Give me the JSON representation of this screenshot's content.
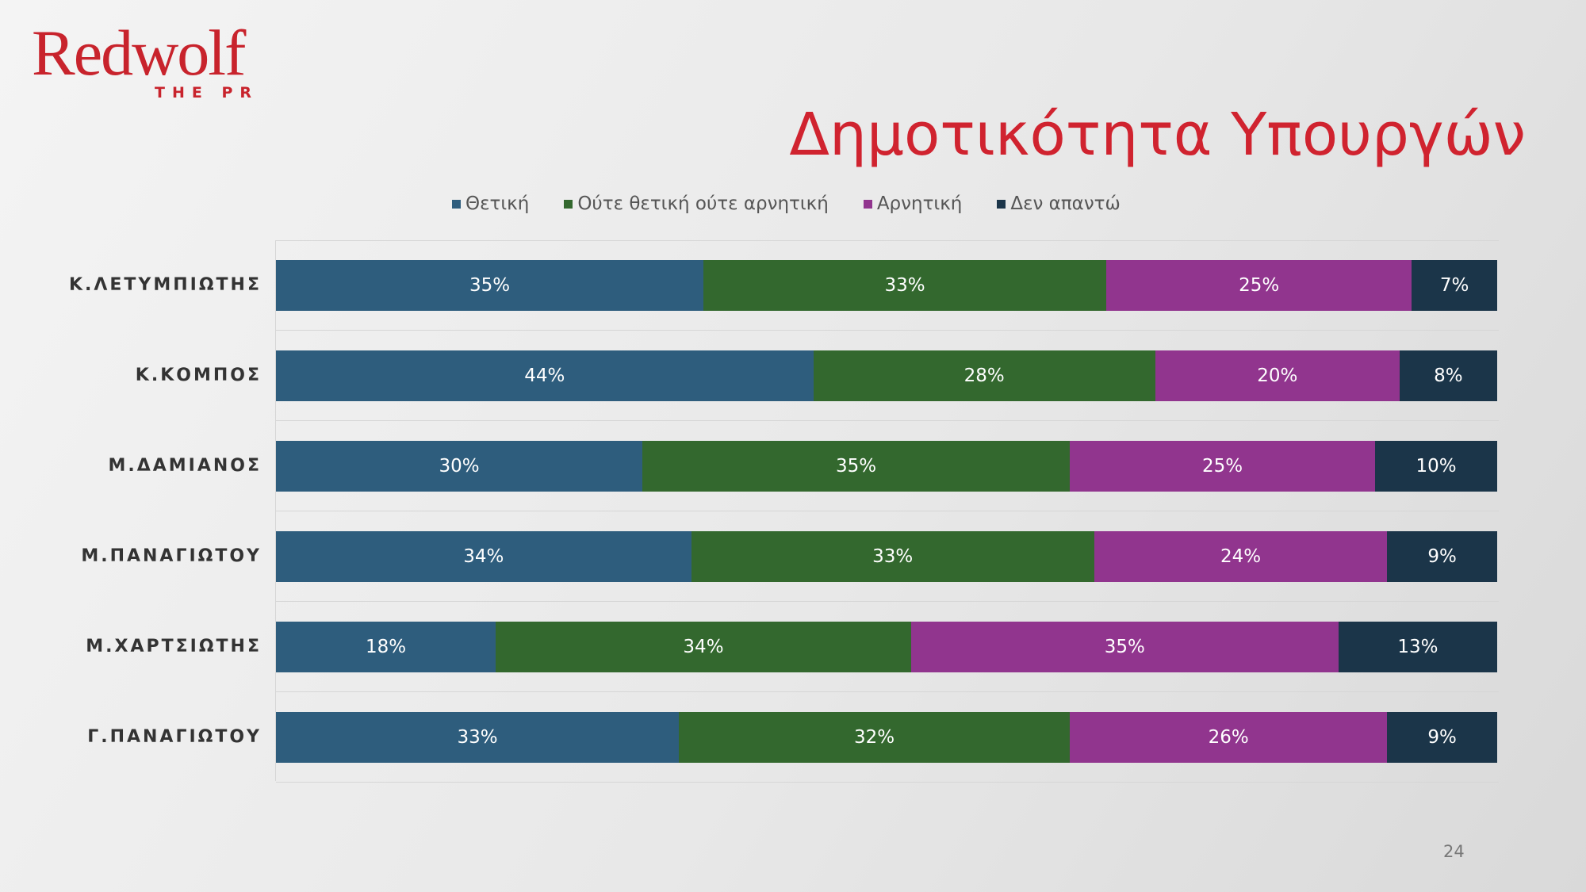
{
  "logo": {
    "wordmark": "Redwolf",
    "tagline": "THE PR"
  },
  "title": "Δημοτικότητα Υπουργών",
  "page_number": "24",
  "colors": {
    "brand_red": "#d0232f",
    "series": [
      "#2e5d7d",
      "#33682e",
      "#91358e",
      "#1b3549"
    ]
  },
  "chart_data": {
    "type": "bar",
    "orientation": "horizontal",
    "stacked": true,
    "normalized_percent": true,
    "legend_position": "top",
    "xlim": [
      0,
      100
    ],
    "categories": [
      "Κ.ΛΕΤΥΜΠΙΩΤΗΣ",
      "Κ.ΚΟΜΠΟΣ",
      "Μ.ΔΑΜΙΑΝΟΣ",
      "Μ.ΠΑΝΑΓΙΩΤΟΥ",
      "Μ.ΧΑΡΤΣΙΩΤΗΣ",
      "Γ.ΠΑΝΑΓΙΩΤΟΥ"
    ],
    "series": [
      {
        "name": "Θετική",
        "color": "#2e5d7d",
        "values": [
          35,
          44,
          30,
          34,
          18,
          33
        ]
      },
      {
        "name": "Ούτε θετική ούτε αρνητική",
        "color": "#33682e",
        "values": [
          33,
          28,
          35,
          33,
          34,
          32
        ]
      },
      {
        "name": "Αρνητική",
        "color": "#91358e",
        "values": [
          25,
          20,
          25,
          24,
          35,
          26
        ]
      },
      {
        "name": "Δεν απαντώ",
        "color": "#1b3549",
        "values": [
          7,
          8,
          10,
          9,
          13,
          9
        ]
      }
    ]
  }
}
